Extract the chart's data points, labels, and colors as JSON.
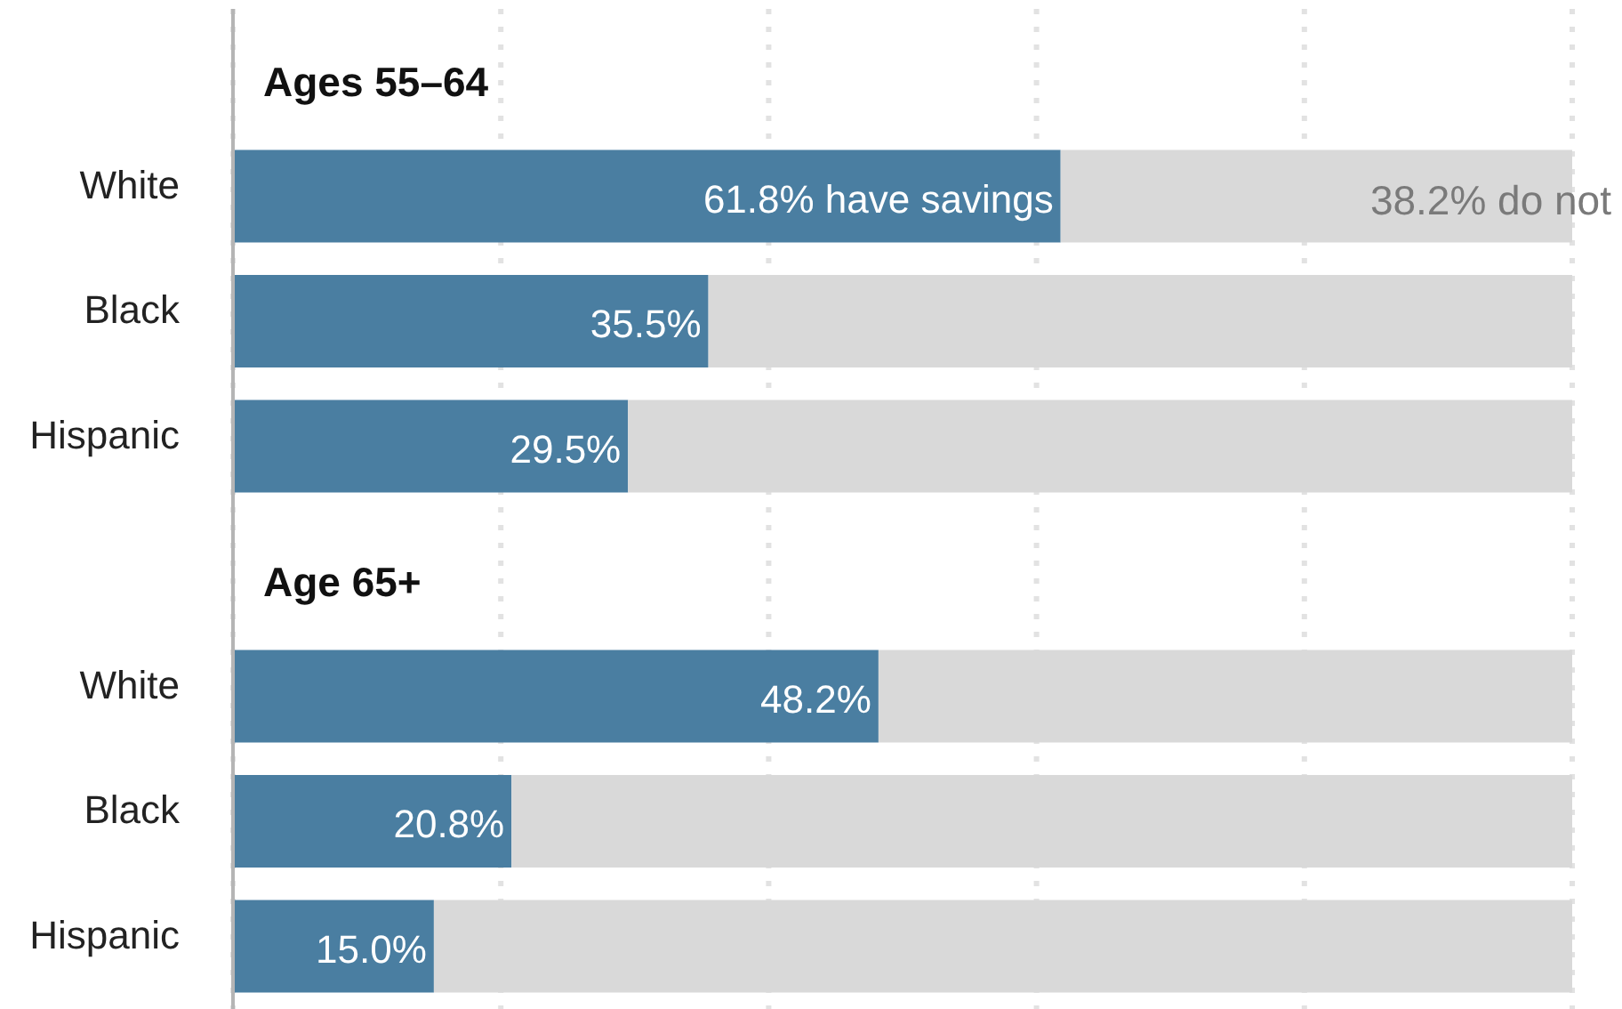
{
  "chart_data": {
    "type": "bar",
    "orientation": "horizontal",
    "stacked": true,
    "categories": [
      "Ages 55–64",
      "White",
      "Black",
      "Hispanic",
      "Age 65+",
      "White",
      "Black",
      "Hispanic"
    ],
    "series": [
      {
        "color": "#4a7ea1",
        "values": [
          null,
          61.8,
          35.5,
          29.5,
          null,
          48.2,
          20.8,
          15.0
        ],
        "value_labels": [
          null,
          "61.8% have savings",
          "35.5%",
          "29.5%",
          null,
          "48.2%",
          "20.8%",
          "15.0%"
        ]
      },
      {
        "color": "#d9d9d9",
        "values": [
          null,
          38.2,
          64.5,
          70.5,
          null,
          51.8,
          79.2,
          85.0
        ],
        "value_labels": [
          null,
          "38.2% do not",
          null,
          null,
          null,
          null,
          null,
          null
        ]
      }
    ],
    "xlim": [
      0,
      100
    ],
    "xticks": [
      {
        "value": 0,
        "label": null
      },
      {
        "value": 20,
        "label": null
      },
      {
        "value": 40,
        "label": null
      },
      {
        "value": 60,
        "label": null
      },
      {
        "value": 80,
        "label": null
      },
      {
        "value": 100,
        "label": null
      }
    ],
    "grid": "x",
    "tick_labels": "y"
  }
}
